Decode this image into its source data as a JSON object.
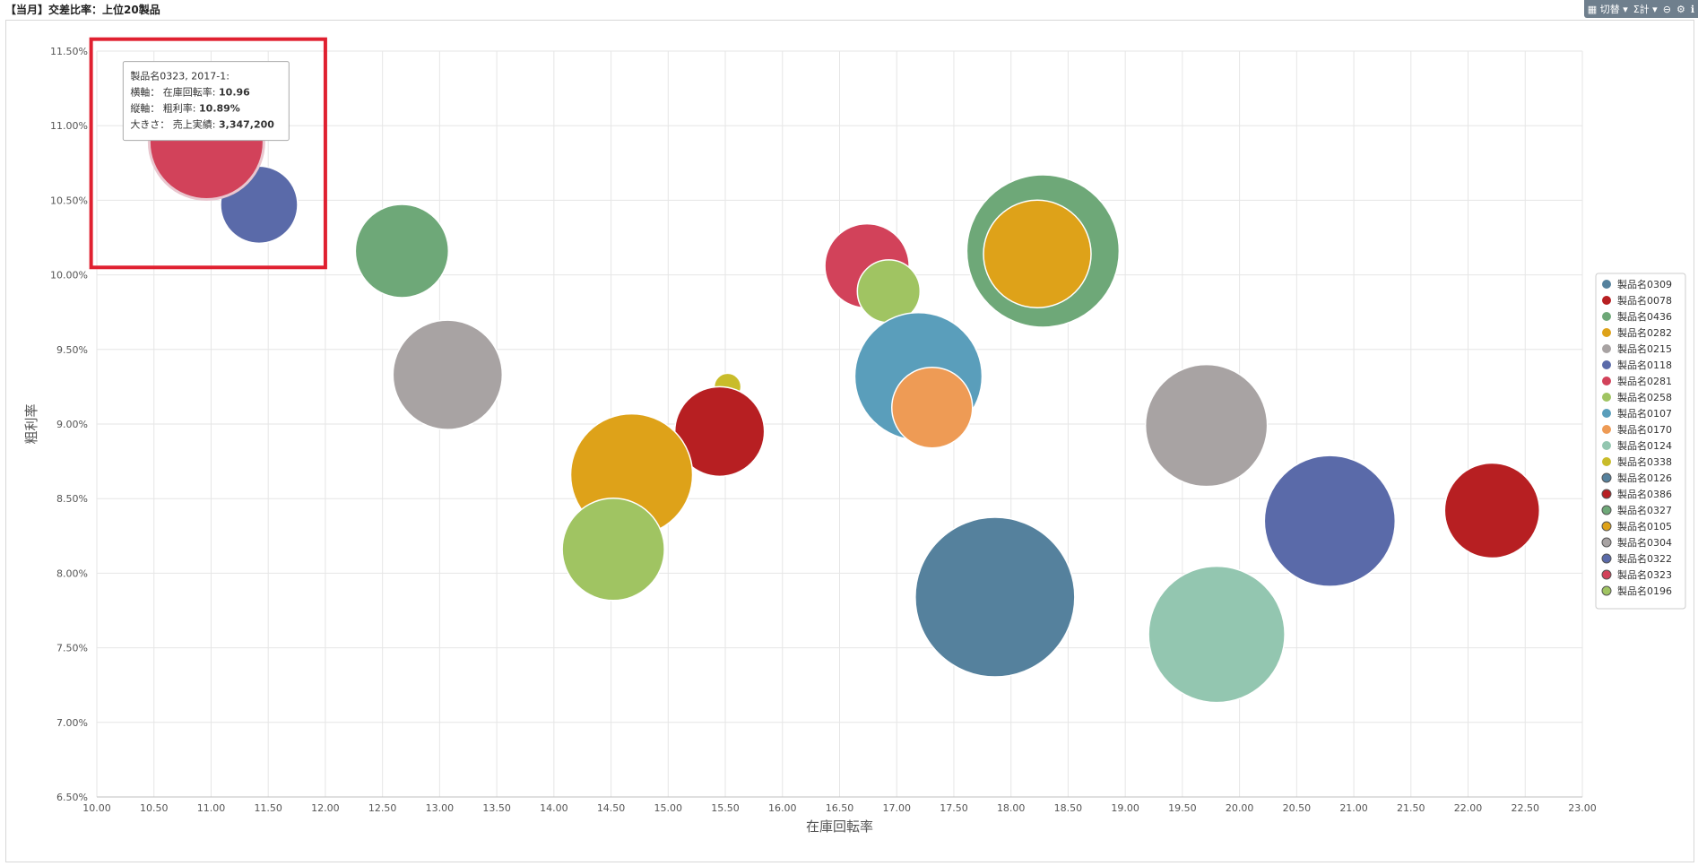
{
  "title": "【当月】交差比率：上位20製品",
  "toolbar": {
    "toggle_label": "切替",
    "sum_label": "Σ計",
    "minus_icon": "minus-circle-icon",
    "gear_icon": "gear-icon",
    "info_icon": "info-icon"
  },
  "tooltip": {
    "line1": "製品名0323, 2017-1:",
    "line2_label": "横軸： 在庫回転率: ",
    "line2_value": "10.96",
    "line3_label": "縦軸： 粗利率: ",
    "line3_value": "10.89%",
    "line4_label": "大きさ： 売上実績: ",
    "line4_value": "3,347,200"
  },
  "highlight_color": "#e02030",
  "chart_data": {
    "type": "scatter",
    "subtype": "bubble",
    "xlabel": "在庫回転率",
    "ylabel": "粗利率",
    "xlim": [
      10.0,
      23.0
    ],
    "ylim": [
      6.5,
      11.5
    ],
    "x_ticks": [
      "10.00",
      "10.50",
      "11.00",
      "11.50",
      "12.00",
      "12.50",
      "13.00",
      "13.50",
      "14.00",
      "14.50",
      "15.00",
      "15.50",
      "16.00",
      "16.50",
      "17.00",
      "17.50",
      "18.00",
      "18.50",
      "19.00",
      "19.50",
      "20.00",
      "20.50",
      "21.00",
      "21.50",
      "22.00",
      "22.50",
      "23.00"
    ],
    "y_ticks": [
      "11.50%",
      "11.00%",
      "10.50%",
      "10.00%",
      "9.50%",
      "9.00%",
      "8.50%",
      "8.00%",
      "7.50%",
      "7.00%",
      "6.50%"
    ],
    "legend_position": "right",
    "series": [
      {
        "name": "製品名0309",
        "color": "#55819d",
        "x": 18.28,
        "y": 10.15,
        "size": 62
      },
      {
        "name": "製品名0078",
        "color": "#b71f22",
        "x": 22.21,
        "y": 8.42,
        "size": 53
      },
      {
        "name": "製品名0436",
        "color": "#6ea878",
        "x": 18.28,
        "y": 10.16,
        "size": 85
      },
      {
        "name": "製品名0282",
        "color": "#dea219",
        "x": 18.23,
        "y": 10.14,
        "size": 60
      },
      {
        "name": "製品名0215",
        "color": "#a8a3a3",
        "x": 19.71,
        "y": 8.99,
        "size": 68
      },
      {
        "name": "製品名0118",
        "color": "#5a6aa9",
        "x": 20.79,
        "y": 8.35,
        "size": 73
      },
      {
        "name": "製品名0281",
        "color": "#d2425a",
        "x": 16.74,
        "y": 10.06,
        "size": 47
      },
      {
        "name": "製品名0258",
        "color": "#a0c462",
        "x": 16.93,
        "y": 9.89,
        "size": 35
      },
      {
        "name": "製品名0107",
        "color": "#5a9ebb",
        "x": 17.19,
        "y": 9.32,
        "size": 71
      },
      {
        "name": "製品名0170",
        "color": "#ee9b55",
        "x": 17.31,
        "y": 9.11,
        "size": 45
      },
      {
        "name": "製品名0124",
        "color": "#93c6b0",
        "x": 19.8,
        "y": 7.59,
        "size": 76
      },
      {
        "name": "製品名0338",
        "color": "#c9bc2a",
        "x": 15.52,
        "y": 9.25,
        "size": 15
      },
      {
        "name": "製品名0126",
        "color": "#55819d",
        "x": 17.86,
        "y": 7.84,
        "size": 89
      },
      {
        "name": "製品名0386",
        "color": "#b71f22",
        "x": 15.45,
        "y": 8.95,
        "size": 50
      },
      {
        "name": "製品名0327",
        "color": "#6ea878",
        "x": 12.67,
        "y": 10.16,
        "size": 52
      },
      {
        "name": "製品名0105",
        "color": "#dea219",
        "x": 14.68,
        "y": 8.66,
        "size": 68
      },
      {
        "name": "製品名0304",
        "color": "#a8a3a3",
        "x": 13.07,
        "y": 9.33,
        "size": 61
      },
      {
        "name": "製品名0322",
        "color": "#5a6aa9",
        "x": 11.42,
        "y": 10.47,
        "size": 43
      },
      {
        "name": "製品名0323",
        "color": "#d2425a",
        "x": 10.96,
        "y": 10.89,
        "size": 64
      },
      {
        "name": "製品名0196",
        "color": "#a0c462",
        "x": 14.52,
        "y": 8.16,
        "size": 57
      }
    ]
  }
}
